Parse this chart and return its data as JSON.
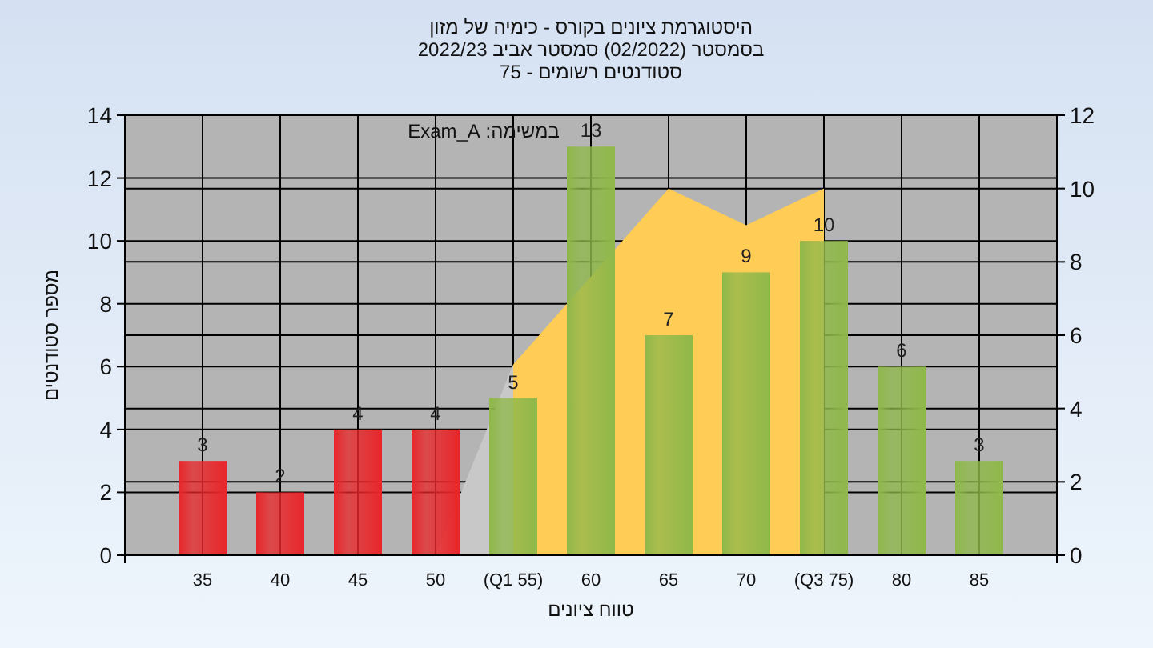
{
  "chart_data": {
    "type": "bar",
    "title": "היסטוגרמת ציונים בקורס - כימיה של מזון",
    "subtitle": "בסמסטר (02/2022) סמסטר אביב 2022/23",
    "annotations": [
      "סטודנטים רשומים - 75",
      "במשימה: Exam_A"
    ],
    "xlabel": "טווח ציונים",
    "ylabel": "מספר סטודנטים",
    "categories": [
      "35",
      "40",
      "45",
      "50",
      "(Q1 55)",
      "60",
      "65",
      "70",
      "(Q3 75)",
      "80",
      "85"
    ],
    "series": [
      {
        "type": "area",
        "axis": "y2",
        "color": "#c8c8c8",
        "values": [
          null,
          null,
          null,
          0,
          5.2,
          null,
          null,
          null,
          null,
          null,
          null
        ]
      },
      {
        "type": "area",
        "axis": "y2",
        "color": "#ffcc55",
        "values": [
          null,
          null,
          null,
          null,
          5.2,
          null,
          10,
          9,
          10,
          null,
          null
        ]
      },
      {
        "values": [
          3,
          2,
          4,
          4,
          5,
          13,
          7,
          9,
          10,
          6,
          3
        ],
        "value_labels": [
          "3",
          "2",
          "4",
          "4",
          "5",
          "13",
          "7",
          "9",
          "10",
          "6",
          "3"
        ],
        "colors": [
          "#e8262a",
          "#e8262a",
          "#e8262a",
          "#e8262a",
          "#8fb84a",
          "#8fb84a",
          "#8fb84a",
          "#8fb84a",
          "#8fb84a",
          "#8fb84a",
          "#8fb84a"
        ]
      }
    ],
    "ylim": [
      0,
      14
    ],
    "yticks": [
      0,
      2,
      4,
      6,
      8,
      10,
      12,
      14
    ],
    "y2lim": [
      0,
      12
    ],
    "y2ticks": [
      0,
      2,
      4,
      6,
      8,
      10,
      12
    ],
    "grid": true
  }
}
